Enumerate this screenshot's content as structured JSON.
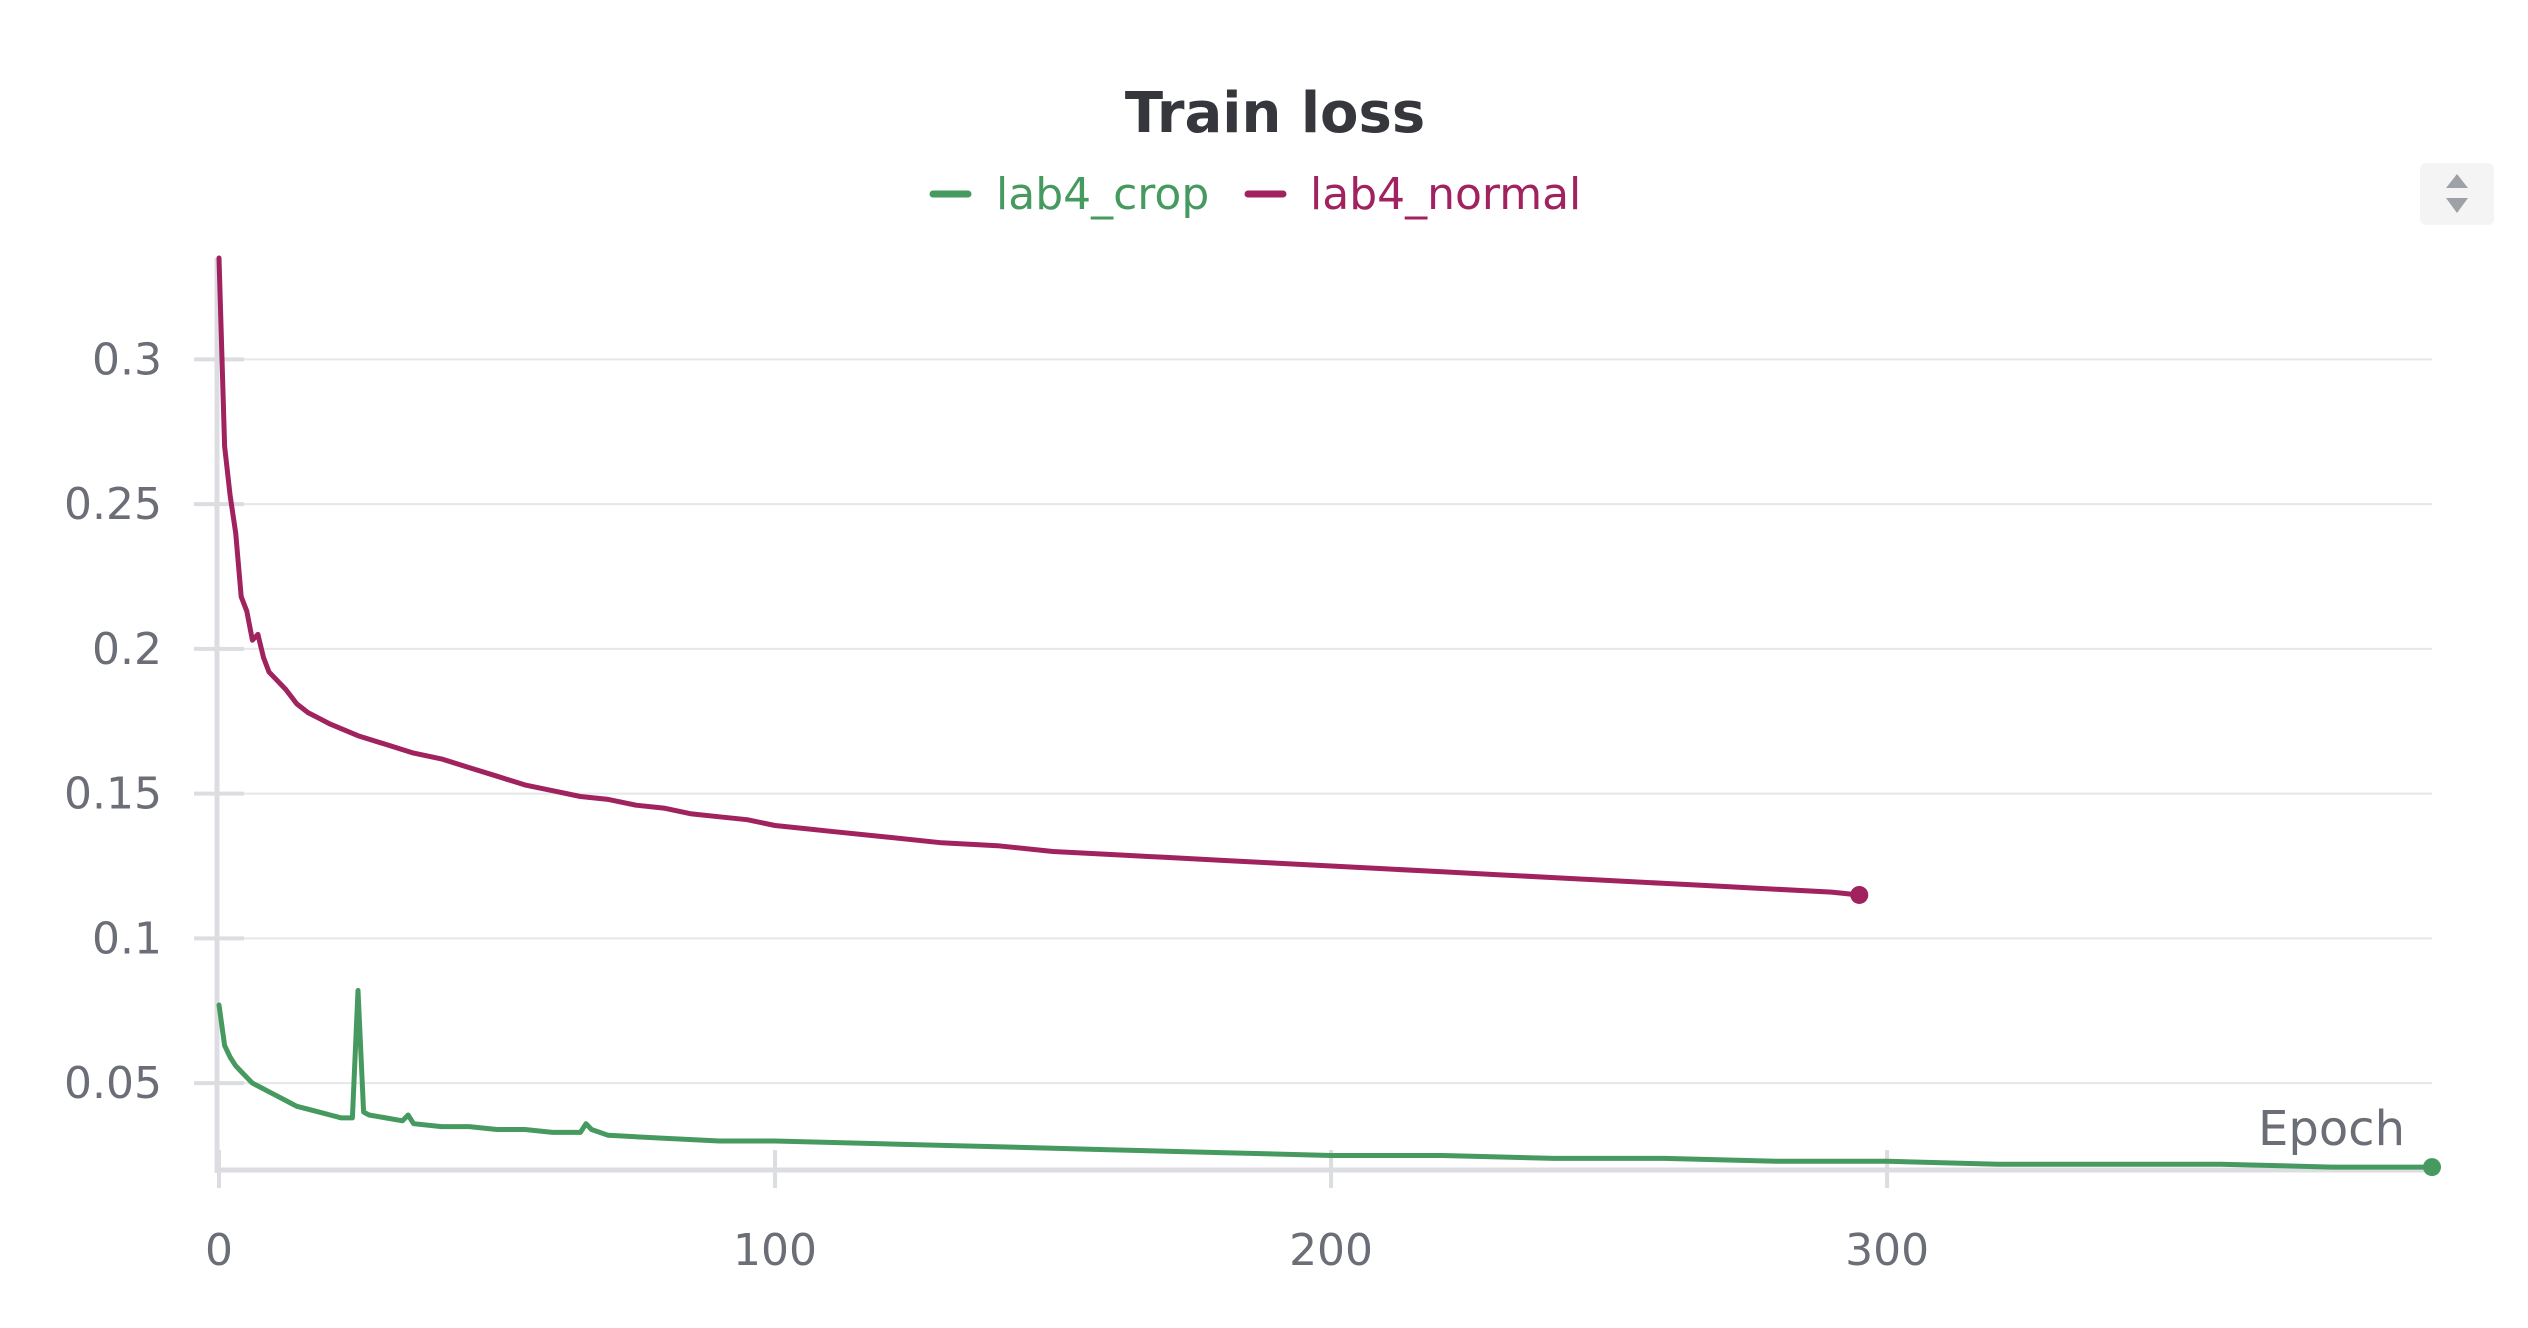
{
  "chart_data": {
    "type": "line",
    "title": "Train loss",
    "xlabel": "Epoch",
    "ylabel": "",
    "xlim": [
      0,
      398
    ],
    "ylim": [
      0.02,
      0.335
    ],
    "x_ticks": [
      0,
      100,
      200,
      300
    ],
    "x_tick_labels": [
      "0",
      "100",
      "200",
      "300"
    ],
    "y_ticks": [
      0.05,
      0.1,
      0.15,
      0.2,
      0.25,
      0.3
    ],
    "y_tick_labels": [
      "0.05",
      "0.1",
      "0.15",
      "0.2",
      "0.25",
      "0.3"
    ],
    "grid": true,
    "legend_position": "top-center",
    "series": [
      {
        "name": "lab4_crop",
        "color": "#479a5f",
        "x": [
          0,
          1,
          2,
          3,
          4,
          5,
          6,
          7,
          8,
          9,
          10,
          12,
          14,
          16,
          18,
          20,
          22,
          24,
          25,
          26,
          27,
          30,
          33,
          34,
          35,
          40,
          45,
          50,
          55,
          60,
          65,
          66,
          67,
          70,
          80,
          90,
          100,
          120,
          140,
          160,
          180,
          200,
          220,
          240,
          260,
          280,
          300,
          320,
          340,
          360,
          380,
          398
        ],
        "values": [
          0.077,
          0.063,
          0.059,
          0.056,
          0.054,
          0.052,
          0.05,
          0.049,
          0.048,
          0.047,
          0.046,
          0.044,
          0.042,
          0.041,
          0.04,
          0.039,
          0.038,
          0.038,
          0.082,
          0.04,
          0.039,
          0.038,
          0.037,
          0.039,
          0.036,
          0.035,
          0.035,
          0.034,
          0.034,
          0.033,
          0.033,
          0.036,
          0.034,
          0.032,
          0.031,
          0.03,
          0.03,
          0.029,
          0.028,
          0.027,
          0.026,
          0.025,
          0.025,
          0.024,
          0.024,
          0.023,
          0.023,
          0.022,
          0.022,
          0.022,
          0.021,
          0.021
        ]
      },
      {
        "name": "lab4_normal",
        "color": "#a0225e",
        "x": [
          0,
          1,
          2,
          3,
          4,
          5,
          6,
          7,
          8,
          9,
          10,
          12,
          14,
          16,
          18,
          20,
          25,
          30,
          35,
          40,
          45,
          50,
          55,
          60,
          65,
          70,
          75,
          80,
          85,
          90,
          95,
          100,
          105,
          110,
          120,
          130,
          140,
          150,
          160,
          170,
          180,
          190,
          200,
          210,
          220,
          230,
          240,
          250,
          260,
          270,
          280,
          290,
          295
        ],
        "values": [
          0.335,
          0.27,
          0.253,
          0.24,
          0.218,
          0.213,
          0.203,
          0.205,
          0.197,
          0.192,
          0.19,
          0.186,
          0.181,
          0.178,
          0.176,
          0.174,
          0.17,
          0.167,
          0.164,
          0.162,
          0.159,
          0.156,
          0.153,
          0.151,
          0.149,
          0.148,
          0.146,
          0.145,
          0.143,
          0.142,
          0.141,
          0.139,
          0.138,
          0.137,
          0.135,
          0.133,
          0.132,
          0.13,
          0.129,
          0.128,
          0.127,
          0.126,
          0.125,
          0.124,
          0.123,
          0.122,
          0.121,
          0.12,
          0.119,
          0.118,
          0.117,
          0.116,
          0.115
        ]
      }
    ]
  }
}
